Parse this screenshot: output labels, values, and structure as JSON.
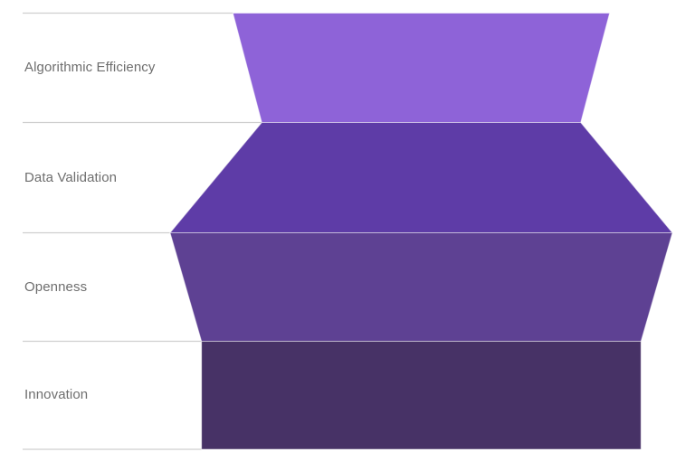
{
  "chart_data": {
    "type": "funnel",
    "title": "",
    "orientation": "vertical",
    "legend": "none",
    "grid": "horizontal category divider lines, left of funnel",
    "categories": [
      "Algorithmic Efficiency",
      "Data Validation",
      "Openness",
      "Innovation"
    ],
    "values_pct_of_max": [
      75,
      63.5,
      100,
      87.5
    ],
    "slice_colors": [
      "#8e63d8",
      "#5e3ca7",
      "#5e4193",
      "#473266"
    ]
  },
  "style": {
    "background": "#ffffff",
    "grid_color": "#cfcfcf",
    "label_color": "#6e6e6e",
    "slice_stroke": "rgba(255,255,255,0.5)"
  }
}
